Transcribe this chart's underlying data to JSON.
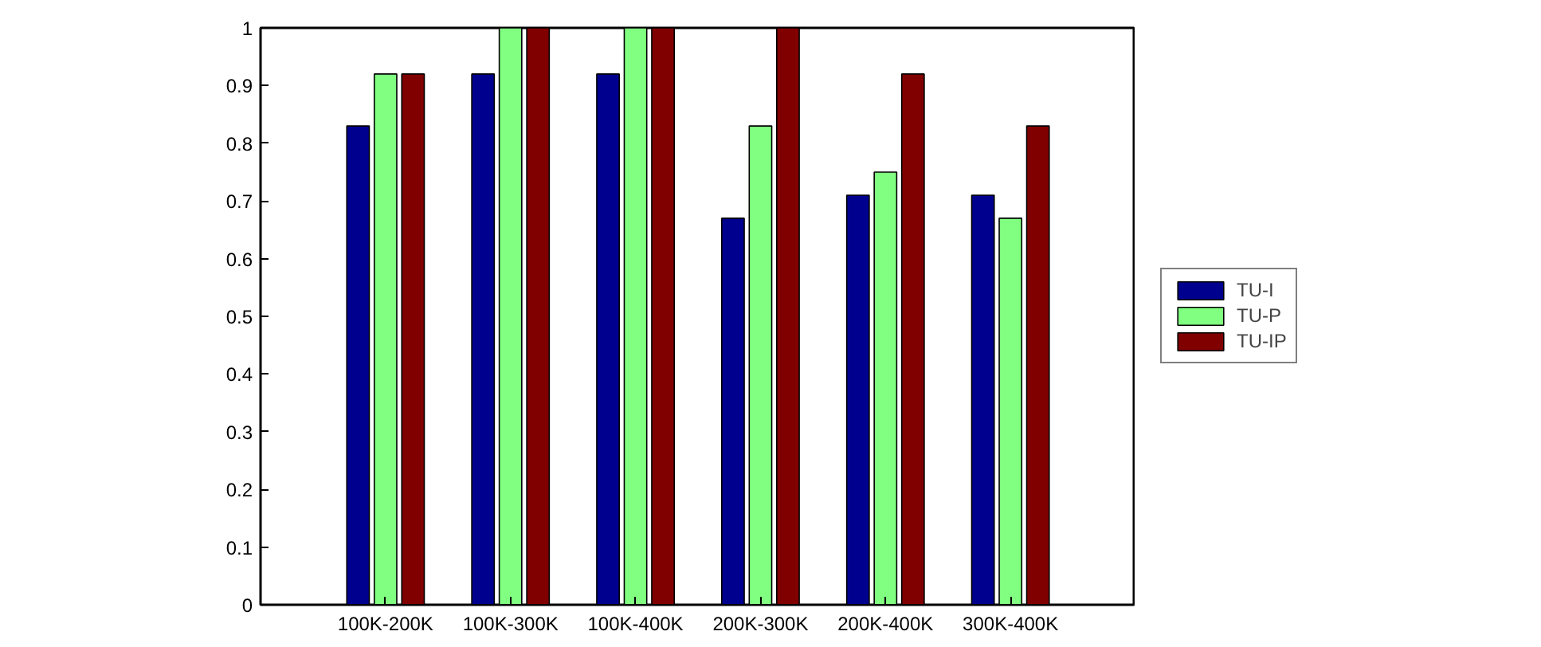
{
  "chart_data": {
    "type": "bar",
    "categories": [
      "100K-200K",
      "100K-300K",
      "100K-400K",
      "200K-300K",
      "200K-400K",
      "300K-400K"
    ],
    "series": [
      {
        "name": "TU-I",
        "color": "#00008f",
        "values": [
          0.83,
          0.92,
          0.92,
          0.67,
          0.71,
          0.71
        ]
      },
      {
        "name": "TU-P",
        "color": "#80ff80",
        "values": [
          0.92,
          1,
          1,
          0.83,
          0.75,
          0.67
        ]
      },
      {
        "name": "TU-IP",
        "color": "#800000",
        "values": [
          0.92,
          1,
          1,
          1,
          0.92,
          0.83
        ]
      }
    ],
    "ylim": [
      0,
      1
    ],
    "yticks": [
      0,
      0.1,
      0.2,
      0.3,
      0.4,
      0.5,
      0.6,
      0.7,
      0.8,
      0.9,
      1
    ],
    "grid": false,
    "legend": "right"
  }
}
